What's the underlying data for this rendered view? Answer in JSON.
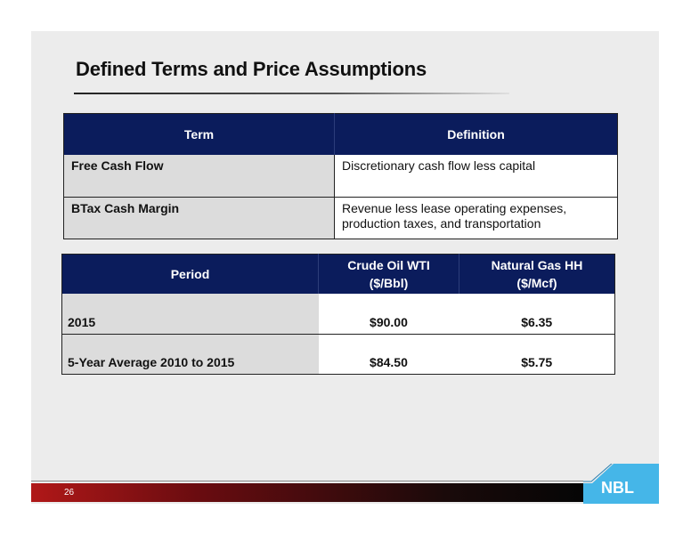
{
  "slide": {
    "title": "Defined Terms and Price Assumptions",
    "page_number": "26",
    "logo_text": "NBL"
  },
  "terms_table": {
    "headers": [
      "Term",
      "Definition"
    ],
    "rows": [
      {
        "term": "Free Cash Flow",
        "definition": "Discretionary cash flow less capital"
      },
      {
        "term": "BTax Cash Margin",
        "definition": "Revenue less lease operating expenses, production taxes, and transportation"
      }
    ]
  },
  "price_table": {
    "headers": {
      "period": "Period",
      "oil": [
        "Crude Oil WTI",
        "($/Bbl)"
      ],
      "gas": [
        "Natural Gas HH",
        "($/Mcf)"
      ]
    },
    "rows": [
      {
        "period": "2015",
        "oil": "$90.00",
        "gas": "$6.35"
      },
      {
        "period": "5-Year Average 2010 to 2015",
        "oil": "$84.50",
        "gas": "$5.75"
      }
    ]
  },
  "colors": {
    "header_navy": "#0b1c5c",
    "label_gray": "#dcdcdc",
    "logo_blue": "#45b6e8"
  }
}
